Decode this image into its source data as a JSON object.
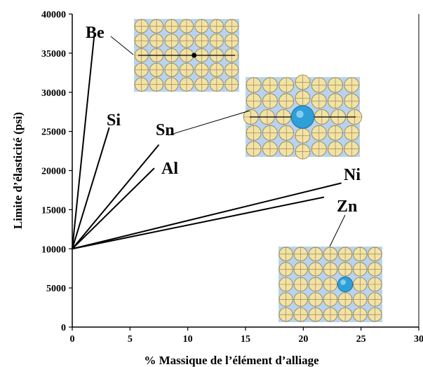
{
  "chart_data": {
    "type": "line",
    "title": "",
    "xlabel": "% Massique de l’élément d’alliage",
    "ylabel": "Limite d’élasticité (psi)",
    "xlim": [
      0,
      30
    ],
    "ylim": [
      0,
      40000
    ],
    "x_ticks": [
      "0",
      "5",
      "10",
      "15",
      "20",
      "25",
      "30"
    ],
    "y_ticks": [
      "0",
      "5000",
      "10000",
      "15000",
      "20000",
      "25000",
      "30000",
      "35000",
      "40000"
    ],
    "grid": false,
    "legend": "none",
    "series": [
      {
        "name": "Be",
        "x": [
          0,
          1.9
        ],
        "y": [
          10000,
          37200
        ]
      },
      {
        "name": "Si",
        "x": [
          0,
          3.2
        ],
        "y": [
          10000,
          25500
        ]
      },
      {
        "name": "Sn",
        "x": [
          0,
          7.5
        ],
        "y": [
          10000,
          23300
        ]
      },
      {
        "name": "Al",
        "x": [
          0,
          7.1
        ],
        "y": [
          10000,
          20300
        ]
      },
      {
        "name": "Ni",
        "x": [
          0,
          23.3
        ],
        "y": [
          10000,
          18400
        ]
      },
      {
        "name": "Zn",
        "x": [
          0,
          21.8
        ],
        "y": [
          10000,
          16600
        ]
      }
    ],
    "insets": [
      {
        "name": "Be-lattice-inset",
        "solute": "small-interstitial"
      },
      {
        "name": "Sn-lattice-inset",
        "solute": "large-substitutional"
      },
      {
        "name": "Zn-lattice-inset",
        "solute": "similar-size-substitutional"
      }
    ],
    "colors": {
      "atom": "#f3e2a4",
      "atom_edge": "#8a7a48",
      "solute": "#2e9fd8",
      "inset_bg": "#b9d3ee"
    }
  }
}
